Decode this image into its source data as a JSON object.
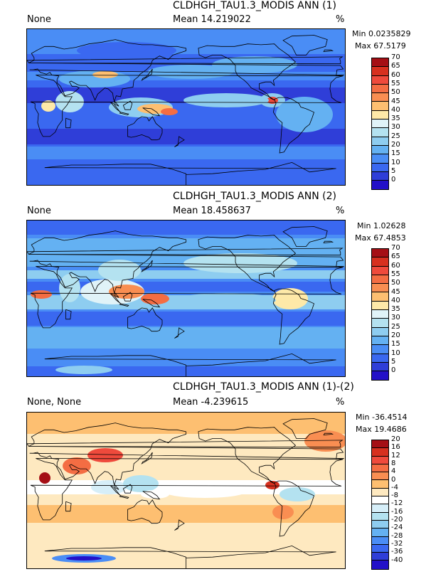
{
  "chart_data": [
    {
      "type": "heatmap",
      "title": "CLDHGH_TAU1.3_MODIS ANN (1)",
      "left_label": "None",
      "mean_label": "Mean 14.219022",
      "units": "%",
      "min_label": "Min 0.0235829",
      "max_label": "Max 67.5179",
      "levels": [
        "70",
        "65",
        "60",
        "55",
        "50",
        "45",
        "40",
        "35",
        "30",
        "25",
        "20",
        "15",
        "10",
        "5",
        "0"
      ],
      "colors": [
        "#a50f15",
        "#d7301f",
        "#ef4a3c",
        "#f46d43",
        "#f98e52",
        "#fdbf71",
        "#fee9a8",
        "#e0f3f8",
        "#b4e2f0",
        "#8ecdf0",
        "#64b1f2",
        "#4a8df5",
        "#3a68f0",
        "#2f3ed8",
        "#2310c8"
      ]
    },
    {
      "type": "heatmap",
      "title": "CLDHGH_TAU1.3_MODIS ANN (2)",
      "left_label": "None",
      "mean_label": "Mean 18.458637",
      "units": "%",
      "min_label": "Min 1.02628",
      "max_label": "Max 67.4853",
      "levels": [
        "70",
        "65",
        "60",
        "55",
        "50",
        "45",
        "40",
        "35",
        "30",
        "25",
        "20",
        "15",
        "10",
        "5",
        "0"
      ],
      "colors": [
        "#a50f15",
        "#d7301f",
        "#ef4a3c",
        "#f46d43",
        "#f98e52",
        "#fdbf71",
        "#fee9a8",
        "#e0f3f8",
        "#b4e2f0",
        "#8ecdf0",
        "#64b1f2",
        "#4a8df5",
        "#3a68f0",
        "#2f3ed8",
        "#2310c8"
      ]
    },
    {
      "type": "heatmap",
      "title": "CLDHGH_TAU1.3_MODIS ANN (1)-(2)",
      "left_label": "None, None",
      "mean_label": "Mean -4.239615",
      "units": "%",
      "min_label": "Min -36.4514",
      "max_label": "Max 19.4686",
      "levels": [
        "20",
        "16",
        "12",
        "8",
        "4",
        "0",
        "-4",
        "-8",
        "-12",
        "-16",
        "-20",
        "-24",
        "-28",
        "-32",
        "-36",
        "-40"
      ],
      "colors": [
        "#a50f15",
        "#d7301f",
        "#ef4a3c",
        "#f46d43",
        "#f98e52",
        "#fdbf71",
        "#fee9c0",
        "#ffffff",
        "#d6eef8",
        "#b4e2f0",
        "#8ecdf0",
        "#64b1f2",
        "#4a8df5",
        "#3a68f0",
        "#2f3ed8",
        "#2310c8"
      ]
    }
  ]
}
